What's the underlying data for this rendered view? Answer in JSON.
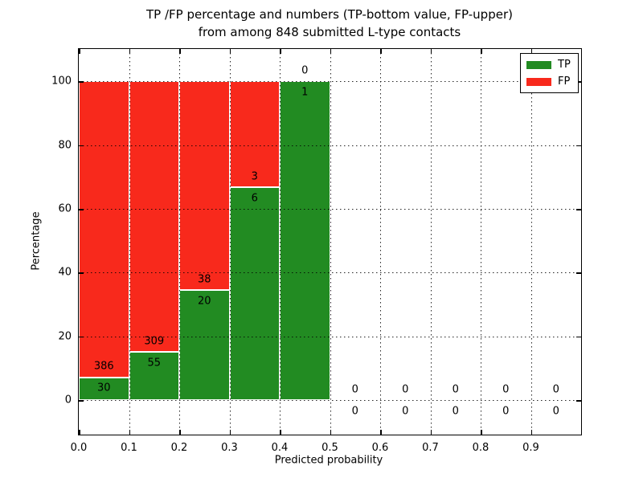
{
  "title": {
    "line1": "TP /FP percentage and numbers (TP-bottom value, FP-upper)",
    "line2": "from among 848 submitted L-type contacts"
  },
  "axes": {
    "xlabel": "Predicted probability",
    "ylabel": "Percentage"
  },
  "legend": {
    "items": [
      {
        "label": "TP",
        "color": "#228b22"
      },
      {
        "label": "FP",
        "color": "#f8291c"
      }
    ]
  },
  "colors": {
    "tp": "#228b22",
    "fp": "#f8291c",
    "bar_edge": "#ffffff",
    "grid": "#000000",
    "background": "#ffffff"
  },
  "chart_data": {
    "type": "bar",
    "stacked": true,
    "normalized_to": 100,
    "title": "TP /FP percentage and numbers (TP-bottom value, FP-upper)\nfrom among 848 submitted L-type contacts",
    "xlabel": "Predicted probability",
    "ylabel": "Percentage",
    "total_contacts": 848,
    "bin_width": 0.1,
    "xlim": [
      0,
      1.0
    ],
    "ylim": [
      -10.8,
      110.1
    ],
    "x_ticks": [
      "0.0",
      "0.1",
      "0.2",
      "0.3",
      "0.4",
      "0.5",
      "0.6",
      "0.7",
      "0.8",
      "0.9"
    ],
    "y_ticks": [
      0,
      20,
      40,
      60,
      80,
      100
    ],
    "grid": "dotted, both axes, drawn over bars",
    "legend_position": "upper right",
    "series": [
      {
        "name": "TP",
        "color": "#228b22",
        "position": "bottom"
      },
      {
        "name": "FP",
        "color": "#f8291c",
        "position": "top"
      }
    ],
    "bins": [
      {
        "start": 0.0,
        "end": 0.1,
        "tp_count": 30,
        "fp_count": 386,
        "tp_pct": 7.2,
        "fp_pct": 92.8,
        "has_bar": true
      },
      {
        "start": 0.1,
        "end": 0.2,
        "tp_count": 55,
        "fp_count": 309,
        "tp_pct": 15.1,
        "fp_pct": 84.9,
        "has_bar": true
      },
      {
        "start": 0.2,
        "end": 0.3,
        "tp_count": 20,
        "fp_count": 38,
        "tp_pct": 34.5,
        "fp_pct": 65.5,
        "has_bar": true
      },
      {
        "start": 0.3,
        "end": 0.4,
        "tp_count": 6,
        "fp_count": 3,
        "tp_pct": 66.7,
        "fp_pct": 33.3,
        "has_bar": true
      },
      {
        "start": 0.4,
        "end": 0.5,
        "tp_count": 1,
        "fp_count": 0,
        "tp_pct": 100,
        "fp_pct": 0,
        "has_bar": true
      },
      {
        "start": 0.5,
        "end": 0.6,
        "tp_count": 0,
        "fp_count": 0,
        "tp_pct": 0,
        "fp_pct": 0,
        "has_bar": false
      },
      {
        "start": 0.6,
        "end": 0.7,
        "tp_count": 0,
        "fp_count": 0,
        "tp_pct": 0,
        "fp_pct": 0,
        "has_bar": false
      },
      {
        "start": 0.7,
        "end": 0.8,
        "tp_count": 0,
        "fp_count": 0,
        "tp_pct": 0,
        "fp_pct": 0,
        "has_bar": false
      },
      {
        "start": 0.8,
        "end": 0.9,
        "tp_count": 0,
        "fp_count": 0,
        "tp_pct": 0,
        "fp_pct": 0,
        "has_bar": false
      },
      {
        "start": 0.9,
        "end": 1.0,
        "tp_count": 0,
        "fp_count": 0,
        "tp_pct": 0,
        "fp_pct": 0,
        "has_bar": false
      }
    ]
  }
}
